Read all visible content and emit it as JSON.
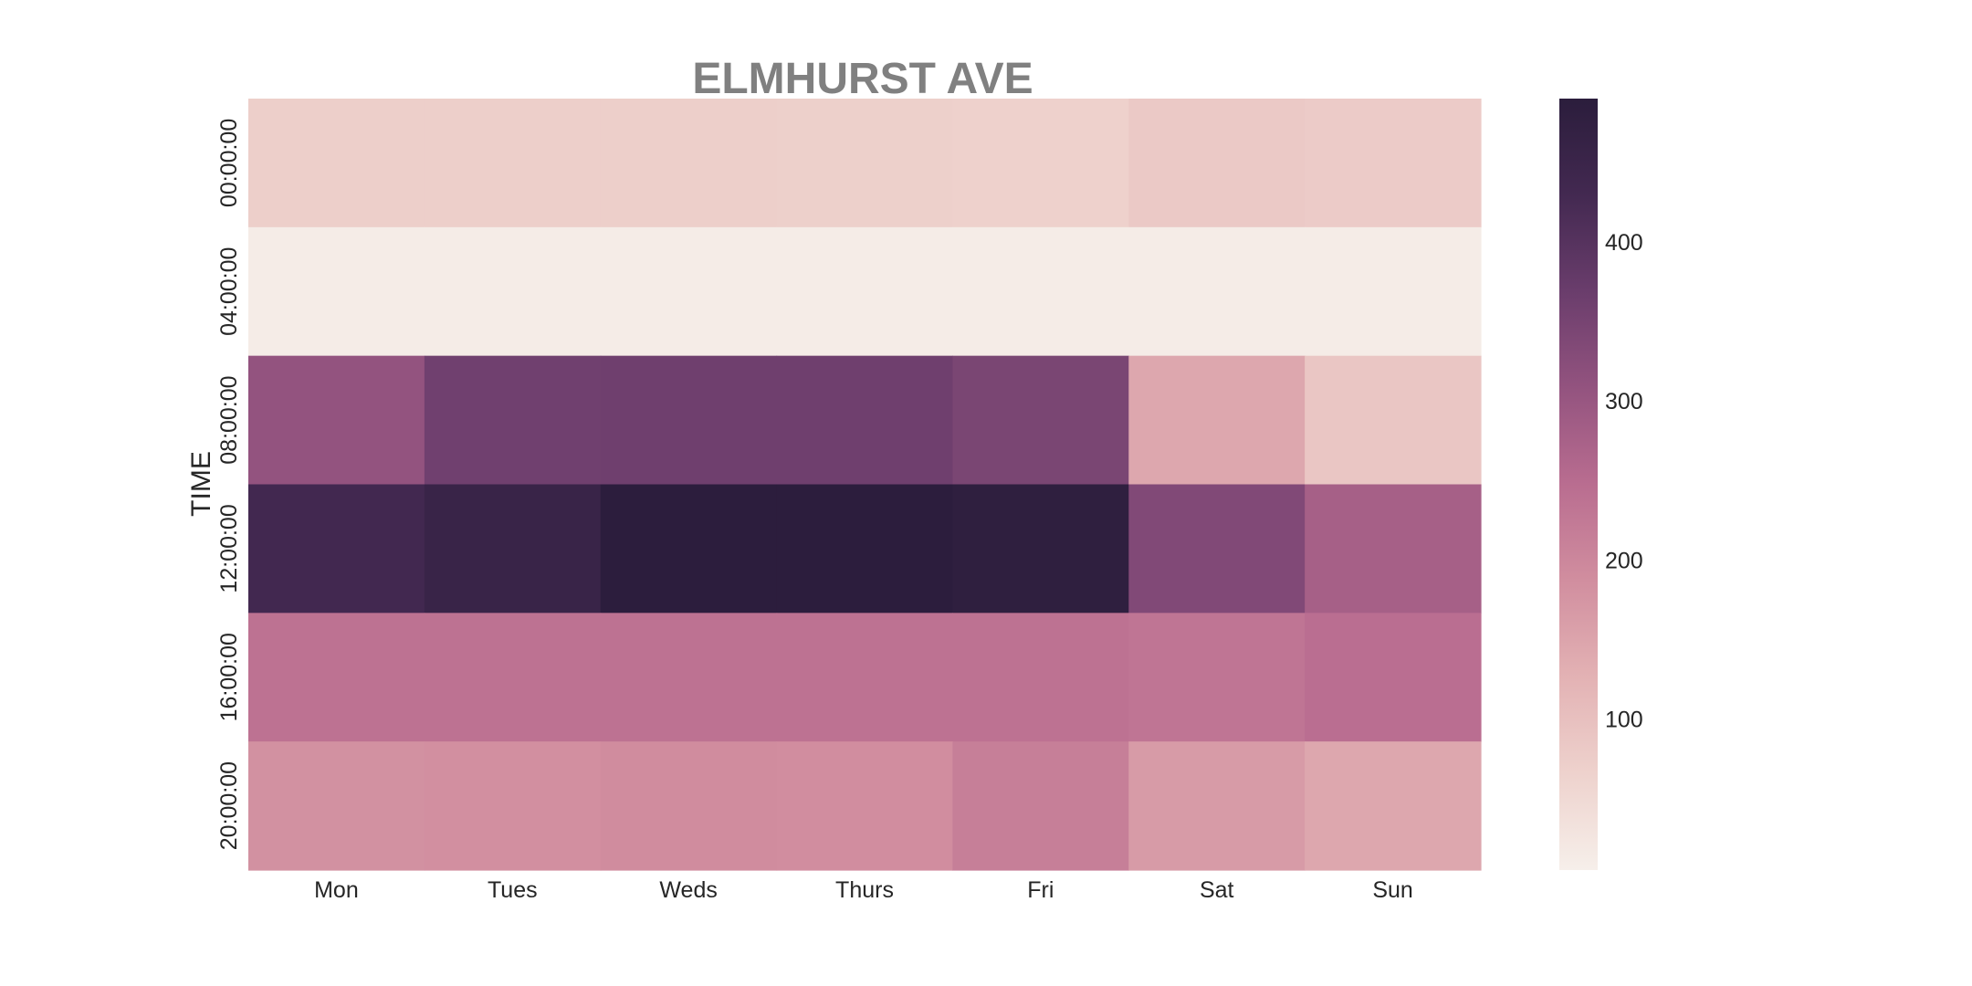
{
  "chart_data": {
    "type": "heatmap",
    "title": "ELMHURST AVE",
    "xlabel": "",
    "ylabel": "TIME",
    "x_categories": [
      "Mon",
      "Tues",
      "Weds",
      "Thurs",
      "Fri",
      "Sat",
      "Sun"
    ],
    "y_categories": [
      "00:00:00",
      "04:00:00",
      "08:00:00",
      "12:00:00",
      "16:00:00",
      "20:00:00"
    ],
    "values": [
      [
        72,
        72,
        72,
        70,
        68,
        82,
        78
      ],
      [
        12,
        12,
        12,
        12,
        12,
        12,
        12
      ],
      [
        308,
        360,
        362,
        362,
        345,
        145,
        88
      ],
      [
        432,
        455,
        488,
        488,
        480,
        335,
        278
      ],
      [
        238,
        238,
        238,
        238,
        238,
        232,
        245
      ],
      [
        182,
        185,
        190,
        188,
        215,
        165,
        145
      ]
    ],
    "colorbar": {
      "range": [
        5,
        490
      ],
      "ticks": [
        100,
        200,
        300,
        400
      ],
      "colors": [
        "#f6efea",
        "#eed2cd",
        "#e3b2b4",
        "#d18e9f",
        "#b96d90",
        "#93537f",
        "#6a3d6c",
        "#432951",
        "#2b1d3c"
      ]
    }
  }
}
